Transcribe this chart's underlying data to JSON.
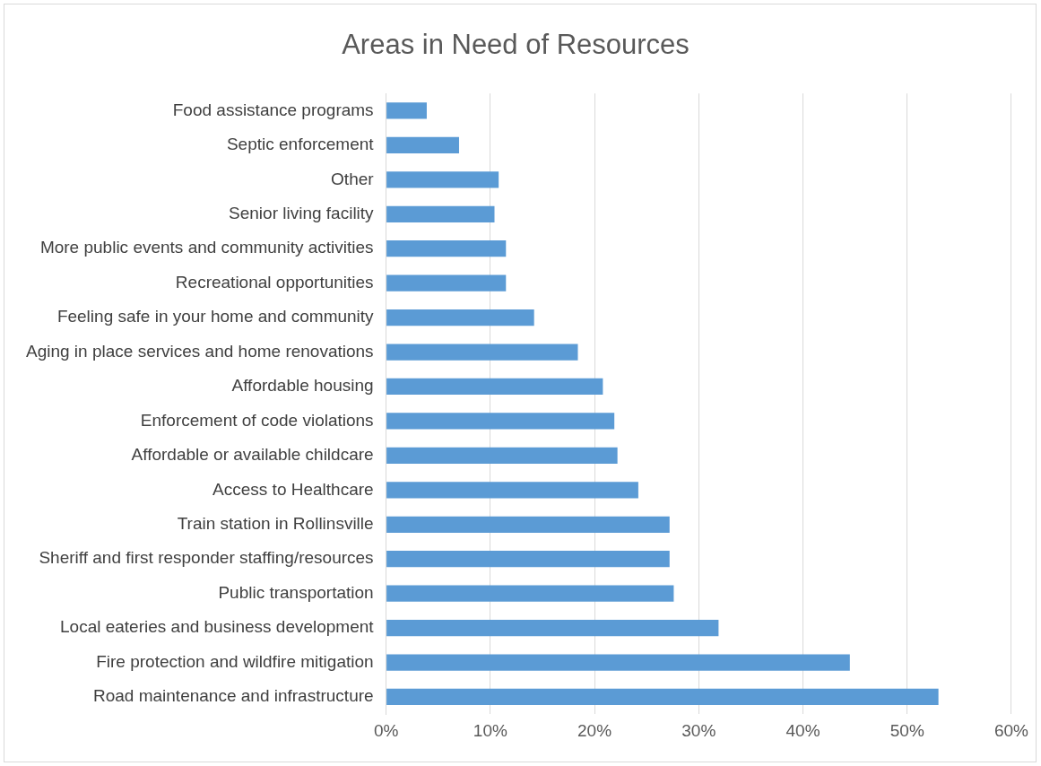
{
  "chart_data": {
    "type": "bar",
    "orientation": "horizontal",
    "title": "Areas in Need of Resources",
    "categories": [
      "Food assistance programs",
      "Septic enforcement",
      "Other",
      "Senior living facility",
      "More public events and community activities",
      "Recreational opportunities",
      "Feeling safe in your home and community",
      "Aging in place services and home renovations",
      "Affordable housing",
      "Enforcement of code violations",
      "Affordable or available childcare",
      "Access to Healthcare",
      "Train station in Rollinsville",
      "Sheriff and first responder staffing/resources",
      "Public transportation",
      "Local eateries and business development",
      "Fire protection and wildfire mitigation",
      "Road maintenance and infrastructure"
    ],
    "values": [
      3.9,
      7.0,
      10.8,
      10.4,
      11.5,
      11.5,
      14.2,
      18.4,
      20.8,
      21.9,
      22.2,
      24.2,
      27.2,
      27.2,
      27.6,
      31.9,
      44.5,
      53.0
    ],
    "color": "#5b9bd5",
    "xlim": [
      0,
      60
    ],
    "xticks": [
      {
        "value": 0,
        "label": "0%"
      },
      {
        "value": 10,
        "label": "10%"
      },
      {
        "value": 20,
        "label": "20%"
      },
      {
        "value": 30,
        "label": "30%"
      },
      {
        "value": 40,
        "label": "40%"
      },
      {
        "value": 50,
        "label": "50%"
      },
      {
        "value": 60,
        "label": "60%"
      }
    ],
    "grid": "x",
    "legend": false
  }
}
